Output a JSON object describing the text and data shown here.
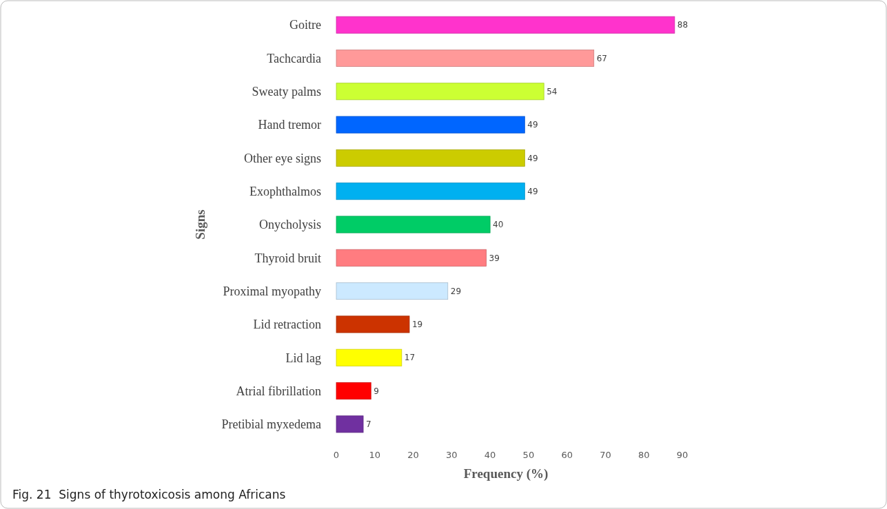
{
  "chart_data": {
    "type": "bar",
    "orientation": "horizontal",
    "xlabel": "Frequency (%)",
    "ylabel": "Signs",
    "categories": [
      "Goitre",
      "Tachcardia",
      "Sweaty palms",
      "Hand tremor",
      "Other eye signs",
      "Exophthalmos",
      "Onycholysis",
      "Thyroid bruit",
      "Proximal myopathy",
      "Lid retraction",
      "Lid lag",
      "Atrial fibrillation",
      "Pretibial myxedema"
    ],
    "values": [
      88,
      67,
      54,
      49,
      49,
      49,
      40,
      39,
      29,
      19,
      17,
      9,
      7
    ],
    "colors": [
      "#ff33cc",
      "#ff9999",
      "#ccff33",
      "#0066ff",
      "#cccc00",
      "#00b0f0",
      "#00cc66",
      "#ff7c80",
      "#cce9ff",
      "#cc3300",
      "#ffff00",
      "#ff0000",
      "#7030a0"
    ],
    "xlim": [
      0,
      90
    ],
    "xticks": [
      0,
      10,
      20,
      30,
      40,
      50,
      60,
      70,
      80,
      90
    ],
    "grid": false,
    "data_labels": true,
    "annotations": [
      "Fig. 21  Signs of thyrotoxicosis among Africans"
    ]
  }
}
